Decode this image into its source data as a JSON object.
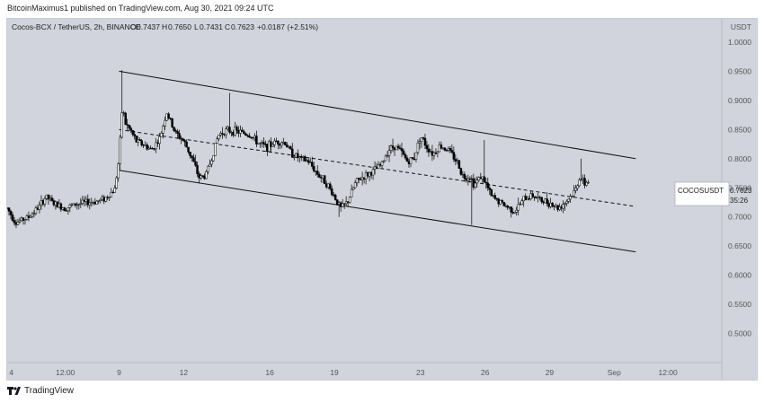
{
  "header": {
    "published_line": "BitcoinMaximus1 published on TradingView.com, Aug 30, 2021 09:24 UTC"
  },
  "legend": {
    "symbol": "Cocos-BCX / TetherUS, 2h, BINANCE",
    "o": "0.7437",
    "h": "0.7650",
    "l": "0.7431",
    "c": "0.7623",
    "change": "+0.0187 (+2.51%)"
  },
  "price_scale": {
    "unit": "USDT",
    "ticks": [
      "1.0000",
      "0.9500",
      "0.9000",
      "0.8500",
      "0.8000",
      "0.7500",
      "0.7000",
      "0.6500",
      "0.6000",
      "0.5500",
      "0.5000"
    ]
  },
  "time_axis": {
    "ticks": [
      "4",
      "12:00",
      "9",
      "12",
      "16",
      "19",
      "23",
      "26",
      "29",
      "Sep",
      "12:00"
    ]
  },
  "price_label": {
    "symbol": "COCOSUSDT",
    "price": "0.7623",
    "countdown": "35:26"
  },
  "footer": {
    "brand": "TradingView"
  },
  "colors": {
    "background": "#d1d4dc",
    "candle": "#000000",
    "channel": "#000000"
  },
  "chart_data": {
    "type": "candlestick",
    "interval": "2h",
    "ylim": [
      0.45,
      1.04
    ],
    "x_range_days": [
      3.8,
      37.0
    ],
    "grid": false,
    "channel": {
      "upper": {
        "x": [
          9.0,
          33.0
        ],
        "y": [
          0.95,
          0.8
        ]
      },
      "lower": {
        "x": [
          9.0,
          33.0
        ],
        "y": [
          0.78,
          0.64
        ]
      },
      "mid": {
        "x": [
          9.0,
          33.0
        ],
        "y": [
          0.85,
          0.718
        ],
        "style": "dashed"
      }
    },
    "path": [
      [
        3.8,
        0.715
      ],
      [
        4.2,
        0.69
      ],
      [
        4.8,
        0.7
      ],
      [
        5.3,
        0.718
      ],
      [
        5.6,
        0.735
      ],
      [
        6.0,
        0.722
      ],
      [
        6.5,
        0.715
      ],
      [
        7.0,
        0.722
      ],
      [
        7.5,
        0.725
      ],
      [
        8.0,
        0.727
      ],
      [
        8.4,
        0.733
      ],
      [
        8.8,
        0.748
      ],
      [
        9.0,
        0.8
      ],
      [
        9.15,
        0.89
      ],
      [
        9.3,
        0.86
      ],
      [
        9.5,
        0.85
      ],
      [
        9.8,
        0.83
      ],
      [
        10.1,
        0.825
      ],
      [
        10.5,
        0.815
      ],
      [
        10.9,
        0.835
      ],
      [
        11.2,
        0.88
      ],
      [
        11.6,
        0.845
      ],
      [
        12.0,
        0.83
      ],
      [
        12.4,
        0.8
      ],
      [
        12.7,
        0.768
      ],
      [
        13.0,
        0.77
      ],
      [
        13.3,
        0.8
      ],
      [
        13.6,
        0.84
      ],
      [
        13.9,
        0.848
      ],
      [
        14.3,
        0.848
      ],
      [
        14.7,
        0.845
      ],
      [
        15.1,
        0.84
      ],
      [
        15.5,
        0.825
      ],
      [
        15.9,
        0.82
      ],
      [
        16.3,
        0.83
      ],
      [
        16.7,
        0.828
      ],
      [
        17.0,
        0.81
      ],
      [
        17.4,
        0.8
      ],
      [
        17.8,
        0.795
      ],
      [
        18.2,
        0.775
      ],
      [
        18.6,
        0.76
      ],
      [
        19.0,
        0.735
      ],
      [
        19.3,
        0.715
      ],
      [
        19.6,
        0.725
      ],
      [
        20.0,
        0.76
      ],
      [
        20.4,
        0.77
      ],
      [
        20.8,
        0.778
      ],
      [
        21.2,
        0.79
      ],
      [
        21.5,
        0.815
      ],
      [
        21.8,
        0.822
      ],
      [
        22.1,
        0.812
      ],
      [
        22.4,
        0.795
      ],
      [
        22.7,
        0.8
      ],
      [
        23.0,
        0.84
      ],
      [
        23.3,
        0.82
      ],
      [
        23.6,
        0.808
      ],
      [
        23.9,
        0.822
      ],
      [
        24.3,
        0.815
      ],
      [
        24.7,
        0.795
      ],
      [
        25.0,
        0.768
      ],
      [
        25.3,
        0.77
      ],
      [
        25.5,
        0.755
      ],
      [
        25.8,
        0.77
      ],
      [
        26.0,
        0.76
      ],
      [
        26.3,
        0.735
      ],
      [
        26.7,
        0.725
      ],
      [
        27.0,
        0.718
      ],
      [
        27.4,
        0.71
      ],
      [
        27.8,
        0.73
      ],
      [
        28.2,
        0.738
      ],
      [
        28.6,
        0.728
      ],
      [
        29.0,
        0.725
      ],
      [
        29.4,
        0.715
      ],
      [
        29.8,
        0.728
      ],
      [
        30.2,
        0.745
      ],
      [
        30.4,
        0.77
      ],
      [
        30.6,
        0.756
      ],
      [
        30.8,
        0.762
      ]
    ],
    "spikes": [
      {
        "x": 9.1,
        "high": 0.952
      },
      {
        "x": 14.1,
        "high": 0.913
      },
      {
        "x": 19.2,
        "low": 0.7
      },
      {
        "x": 25.4,
        "low": 0.686
      },
      {
        "x": 26.0,
        "high": 0.832
      },
      {
        "x": 30.5,
        "high": 0.8
      }
    ]
  }
}
